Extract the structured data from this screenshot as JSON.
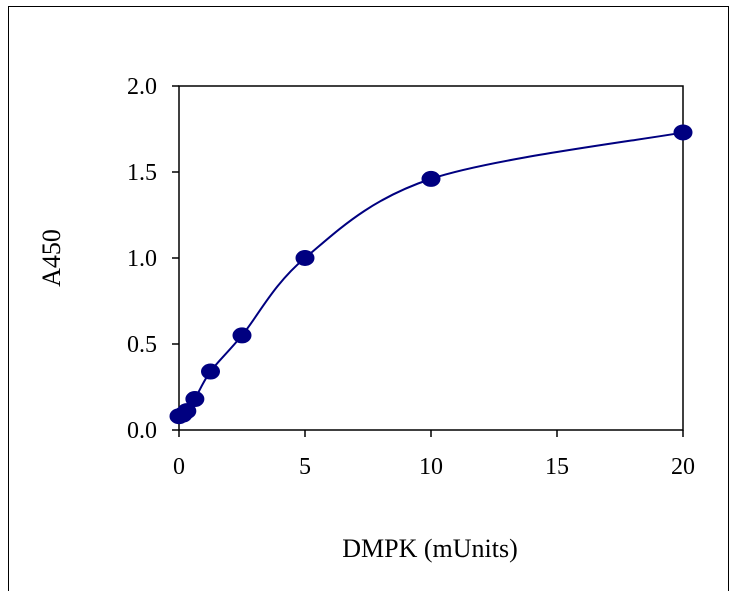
{
  "chart_data": {
    "type": "line",
    "xlabel": "DMPK (mUnits)",
    "ylabel": "A450",
    "xlim": [
      0,
      20
    ],
    "ylim": [
      0,
      2.0
    ],
    "xticks": [
      0,
      5,
      10,
      15,
      20
    ],
    "yticks": [
      0.0,
      0.5,
      1.0,
      1.5,
      2.0
    ],
    "xtick_labels": [
      "0",
      "5",
      "10",
      "15",
      "20"
    ],
    "ytick_labels": [
      "0.0",
      "0.5",
      "1.0",
      "1.5",
      "2.0"
    ],
    "grid": false,
    "legend": "none",
    "colors": {
      "series": "#000080",
      "axis": "#000000"
    },
    "series": [
      {
        "x": [
          0,
          0.16,
          0.31,
          0.63,
          1.25,
          2.5,
          5,
          10,
          20
        ],
        "y": [
          0.08,
          0.09,
          0.11,
          0.18,
          0.34,
          0.55,
          1.0,
          1.46,
          1.73
        ]
      }
    ]
  }
}
